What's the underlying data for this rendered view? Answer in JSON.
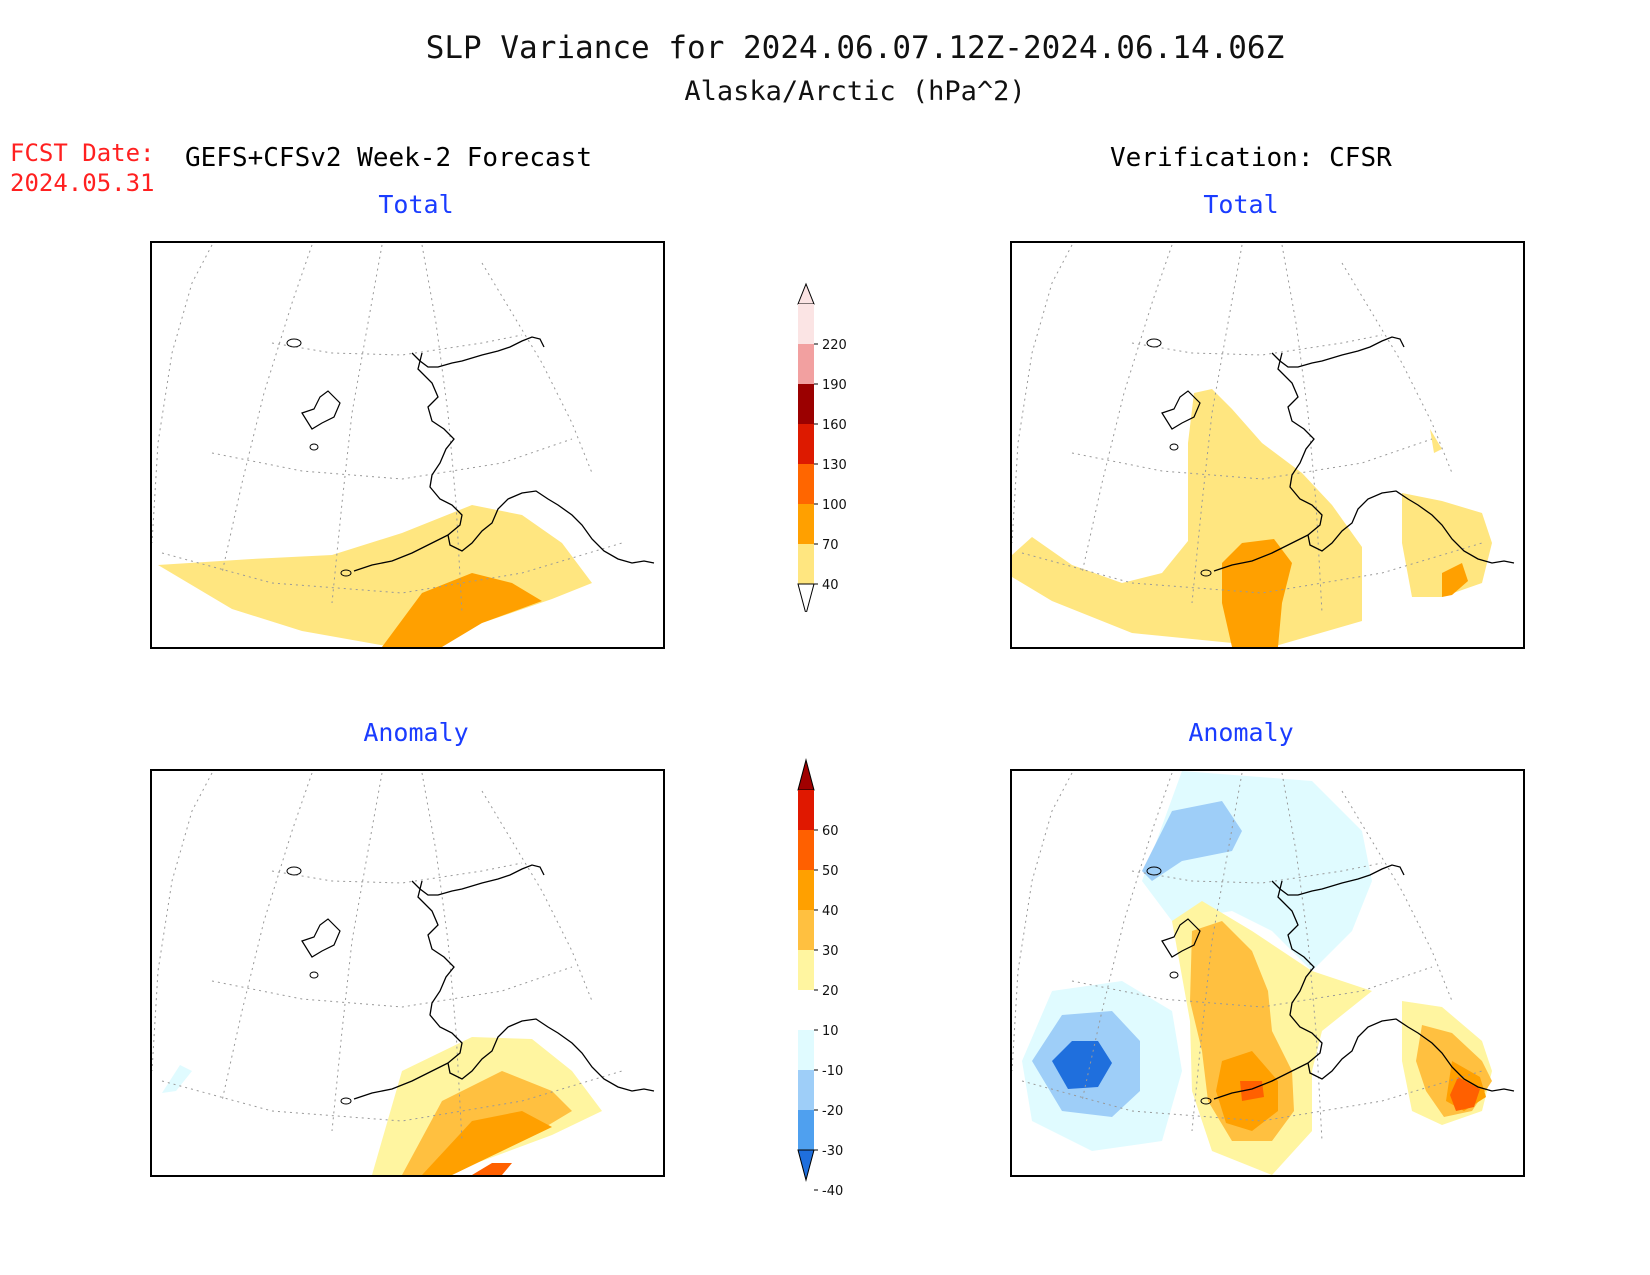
{
  "header": {
    "title": "SLP Variance for 2024.06.07.12Z-2024.06.14.06Z",
    "subtitle": "Alaska/Arctic (hPa^2)",
    "fcst_line1": "FCST Date:",
    "fcst_line2": "2024.05.31",
    "forecast_heading": "GEFS+CFSv2 Week-2 Forecast",
    "verification_heading": "Verification: CFSR"
  },
  "panels": {
    "fcst_total": "Total",
    "verif_total": "Total",
    "fcst_anom": "Anomaly",
    "verif_anom": "Anomaly"
  },
  "colorbars": {
    "total": {
      "labels": [
        "220",
        "190",
        "160",
        "130",
        "100",
        "70",
        "40"
      ],
      "colors": [
        "#fbe4e4",
        "#f2a0a0",
        "#9b0000",
        "#dd1a00",
        "#ff6600",
        "#ffa000",
        "#ffe680"
      ]
    },
    "anomaly": {
      "labels": [
        "60",
        "50",
        "40",
        "30",
        "20",
        "10",
        "-10",
        "-20",
        "-30",
        "-40"
      ],
      "colors": [
        "#a00000",
        "#e01800",
        "#ff6000",
        "#ffa000",
        "#ffc040",
        "#fff5a0",
        "#ffffff",
        "#e0fbff",
        "#9ecef8",
        "#4fa0ef",
        "#1f6fdd"
      ]
    }
  }
}
